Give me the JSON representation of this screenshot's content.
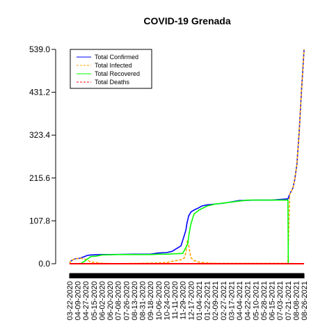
{
  "chart_data": {
    "type": "line",
    "title": "COVID-19 Grenada",
    "xlabel": "",
    "ylabel": "",
    "x_range": [
      "2020-03-22",
      "2021-08-26"
    ],
    "ylim": [
      0,
      539
    ],
    "y_ticks": [
      "0.0",
      "107.8",
      "215.6",
      "323.4",
      "431.2",
      "539.0"
    ],
    "x_tick_labels": [
      "03-22-2020",
      "04-09-2020",
      "04-27-2020",
      "05-15-2020",
      "06-02-2020",
      "06-20-2020",
      "07-08-2020",
      "07-26-2020",
      "08-13-2020",
      "08-31-2020",
      "09-18-2020",
      "10-06-2020",
      "10-24-2020",
      "11-11-2020",
      "11-29-2020",
      "12-17-2020",
      "01-04-2021",
      "01-22-2021",
      "02-09-2021",
      "02-27-2021",
      "03-17-2021",
      "04-04-2021",
      "04-22-2021",
      "05-10-2021",
      "05-28-2021",
      "06-15-2021",
      "07-03-2021",
      "07-21-2021",
      "08-08-2021",
      "08-26-2021"
    ],
    "legend_position": "top-left",
    "grid": false,
    "series": [
      {
        "name": "Total Confirmed",
        "color": "#0000ff",
        "dash": "solid",
        "points": [
          [
            "2020-03-22",
            1
          ],
          [
            "2020-03-25",
            7
          ],
          [
            "2020-04-02",
            12
          ],
          [
            "2020-04-15",
            14
          ],
          [
            "2020-04-24",
            18
          ],
          [
            "2020-05-01",
            21
          ],
          [
            "2020-05-08",
            22
          ],
          [
            "2020-06-01",
            23
          ],
          [
            "2020-06-20",
            23
          ],
          [
            "2020-08-13",
            24
          ],
          [
            "2020-09-18",
            24
          ],
          [
            "2020-10-06",
            27
          ],
          [
            "2020-10-24",
            28
          ],
          [
            "2020-11-05",
            31
          ],
          [
            "2020-11-15",
            38
          ],
          [
            "2020-11-25",
            45
          ],
          [
            "2020-12-02",
            70
          ],
          [
            "2020-12-06",
            85
          ],
          [
            "2020-12-08",
            100
          ],
          [
            "2020-12-12",
            120
          ],
          [
            "2020-12-17",
            130
          ],
          [
            "2020-12-24",
            135
          ],
          [
            "2021-01-04",
            141
          ],
          [
            "2021-01-10",
            145
          ],
          [
            "2021-01-22",
            148
          ],
          [
            "2021-02-27",
            152
          ],
          [
            "2021-04-04",
            159
          ],
          [
            "2021-05-10",
            160
          ],
          [
            "2021-06-15",
            160
          ],
          [
            "2021-07-21",
            163
          ],
          [
            "2021-07-25",
            175
          ],
          [
            "2021-08-01",
            190
          ],
          [
            "2021-08-05",
            210
          ],
          [
            "2021-08-10",
            250
          ],
          [
            "2021-08-15",
            330
          ],
          [
            "2021-08-20",
            430
          ],
          [
            "2021-08-26",
            539
          ]
        ]
      },
      {
        "name": "Total Infected",
        "color": "#ffa500",
        "dash": "dashed",
        "points": [
          [
            "2020-03-22",
            1
          ],
          [
            "2020-03-25",
            7
          ],
          [
            "2020-04-02",
            12
          ],
          [
            "2020-04-15",
            14
          ],
          [
            "2020-04-24",
            12
          ],
          [
            "2020-05-01",
            9
          ],
          [
            "2020-05-08",
            4
          ],
          [
            "2020-05-20",
            3
          ],
          [
            "2020-06-02",
            1
          ],
          [
            "2020-07-08",
            0
          ],
          [
            "2020-10-06",
            2
          ],
          [
            "2020-10-24",
            3
          ],
          [
            "2020-11-05",
            6
          ],
          [
            "2020-11-15",
            8
          ],
          [
            "2020-11-25",
            10
          ],
          [
            "2020-12-02",
            14
          ],
          [
            "2020-12-06",
            28
          ],
          [
            "2020-12-08",
            50
          ],
          [
            "2020-12-10",
            60
          ],
          [
            "2020-12-13",
            40
          ],
          [
            "2020-12-17",
            15
          ],
          [
            "2020-12-24",
            8
          ],
          [
            "2021-01-04",
            4
          ],
          [
            "2021-01-22",
            2
          ],
          [
            "2021-02-09",
            1
          ],
          [
            "2021-07-21",
            1
          ],
          [
            "2021-07-25",
            175
          ],
          [
            "2021-08-01",
            190
          ],
          [
            "2021-08-05",
            210
          ],
          [
            "2021-08-10",
            250
          ],
          [
            "2021-08-15",
            330
          ],
          [
            "2021-08-20",
            430
          ],
          [
            "2021-08-26",
            539
          ]
        ]
      },
      {
        "name": "Total Recovered",
        "color": "#00ff00",
        "dash": "solid",
        "points": [
          [
            "2020-03-22",
            0
          ],
          [
            "2020-04-15",
            0
          ],
          [
            "2020-04-24",
            6
          ],
          [
            "2020-05-01",
            12
          ],
          [
            "2020-05-08",
            18
          ],
          [
            "2020-05-20",
            19
          ],
          [
            "2020-06-02",
            22
          ],
          [
            "2020-07-08",
            23
          ],
          [
            "2020-09-18",
            23
          ],
          [
            "2020-10-06",
            24
          ],
          [
            "2020-10-24",
            24
          ],
          [
            "2020-11-11",
            25
          ],
          [
            "2020-11-29",
            26
          ],
          [
            "2020-12-10",
            50
          ],
          [
            "2020-12-13",
            75
          ],
          [
            "2020-12-17",
            100
          ],
          [
            "2020-12-24",
            125
          ],
          [
            "2021-01-04",
            135
          ],
          [
            "2021-01-22",
            145
          ],
          [
            "2021-02-09",
            150
          ],
          [
            "2021-03-17",
            155
          ],
          [
            "2021-04-22",
            160
          ],
          [
            "2021-07-21",
            160
          ],
          [
            "2021-07-22",
            0
          ],
          [
            "2021-08-26",
            0
          ]
        ]
      },
      {
        "name": "Total Deaths",
        "color": "#ff0000",
        "dash": "dashed",
        "points": [
          [
            "2020-03-22",
            0
          ],
          [
            "2021-08-26",
            0
          ]
        ]
      }
    ]
  }
}
